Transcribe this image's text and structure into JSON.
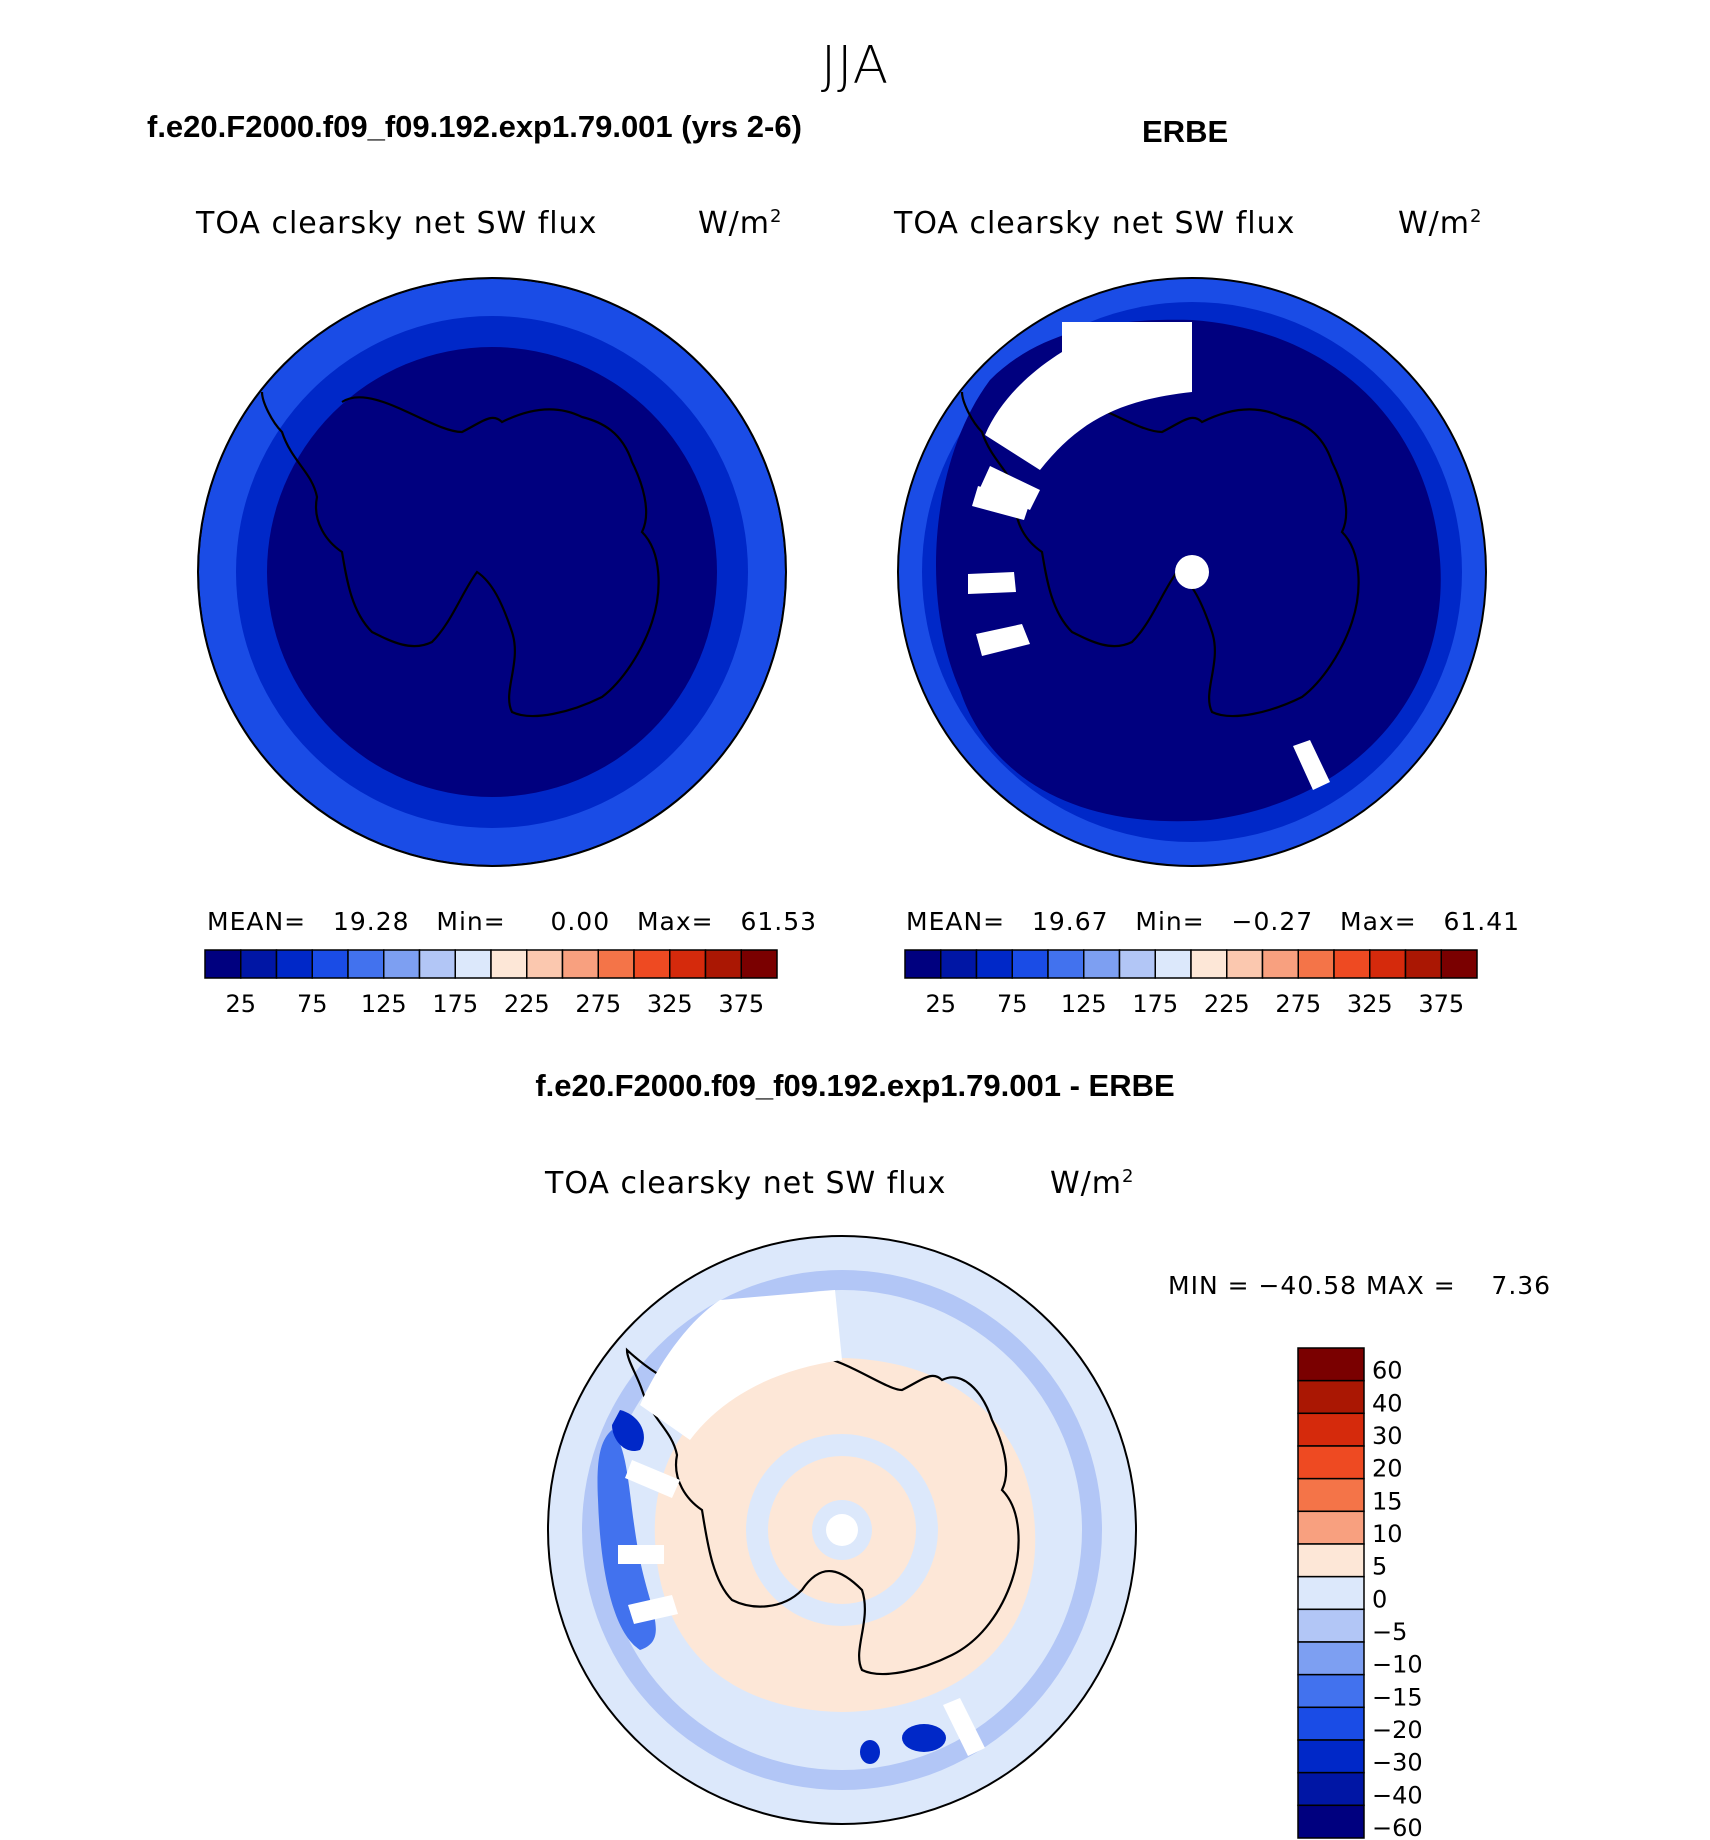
{
  "season": "JJA",
  "panel_left": {
    "case_title": "f.e20.F2000.f09_f09.192.exp1.79.001 (yrs 2-6)",
    "field_title": "TOA clearsky net SW flux",
    "units": "W/m",
    "units_exp": "2",
    "mean_label": "MEAN=",
    "mean_value": "19.28",
    "min_label": "Min=",
    "min_value": "0.00",
    "max_label": "Max=",
    "max_value": "61.53"
  },
  "panel_right": {
    "case_title": "ERBE",
    "field_title": "TOA clearsky net SW flux",
    "units": "W/m",
    "units_exp": "2",
    "mean_label": "MEAN=",
    "mean_value": "19.67",
    "min_label": "Min=",
    "min_value": "−0.27",
    "max_label": "Max=",
    "max_value": "61.41"
  },
  "panel_diff": {
    "case_title": "f.e20.F2000.f09_f09.192.exp1.79.001 - ERBE",
    "field_title": "TOA clearsky net SW flux",
    "units": "W/m",
    "units_exp": "2",
    "minmax_text": "MIN = −40.58 MAX =    7.36"
  },
  "colorbar_abs": {
    "colors": [
      "#00007f",
      "#0016a5",
      "#0028c8",
      "#1a4ce6",
      "#4272ee",
      "#7d9ff2",
      "#b2c6f6",
      "#dce8fb",
      "#fde7d7",
      "#fbc8af",
      "#f8a07f",
      "#f47448",
      "#ee4a22",
      "#d52a0c",
      "#aa1703",
      "#7a0000"
    ],
    "labels": [
      "25",
      "75",
      "125",
      "175",
      "225",
      "275",
      "325",
      "375"
    ]
  },
  "colorbar_diff": {
    "colors": [
      "#7a0000",
      "#aa1703",
      "#d52a0c",
      "#ee4a22",
      "#f47448",
      "#f8a07f",
      "#fde7d7",
      "#dce8fb",
      "#b2c6f6",
      "#7d9ff2",
      "#4272ee",
      "#1a4ce6",
      "#0028c8",
      "#0016a5",
      "#00007f"
    ],
    "labels": [
      "60",
      "40",
      "30",
      "20",
      "15",
      "10",
      "5",
      "0",
      "−5",
      "−10",
      "−15",
      "−20",
      "−30",
      "−40",
      "−60"
    ]
  },
  "map_colors": {
    "abs_outer": "#1a4ce6",
    "abs_ring": "#0028c8",
    "abs_inner": "#00007f",
    "missing": "#ffffff",
    "diff_base": "#dce8fb",
    "diff_land": "#fde7d7",
    "diff_neg10": "#b2c6f6",
    "diff_neg20": "#4272ee",
    "diff_neg40": "#0028c8"
  }
}
